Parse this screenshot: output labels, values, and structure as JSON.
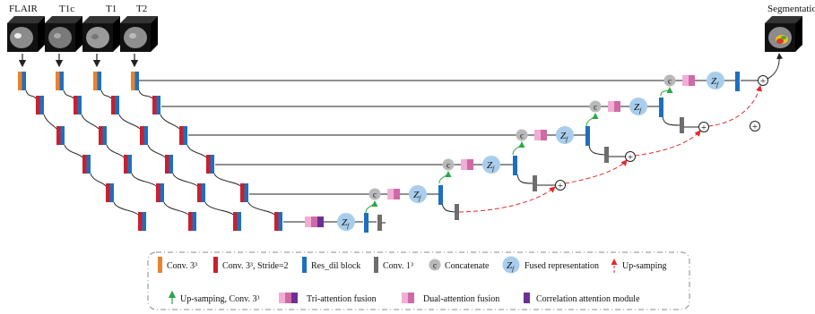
{
  "modalities": [
    "FLAIR",
    "T1c",
    "T1",
    "T2"
  ],
  "output_label": "Segmentation",
  "node_labels": {
    "concatenate": "c",
    "fused": "Z",
    "fused_sub": "f",
    "add": "+"
  },
  "legend": {
    "row1": [
      {
        "key": "conv",
        "label": "Conv. 3³"
      },
      {
        "key": "conv_stride",
        "label": "Conv. 3³, Stride=2"
      },
      {
        "key": "res_dil",
        "label": "Res_dil block"
      },
      {
        "key": "conv1",
        "label": "Conv. 1³"
      },
      {
        "key": "concat",
        "label": "Concatenate"
      },
      {
        "key": "fused",
        "label": "Fused representation"
      },
      {
        "key": "upsample",
        "label": "Up-samping"
      }
    ],
    "row2": [
      {
        "key": "upconv",
        "label": "Up-samping, Conv. 3³"
      },
      {
        "key": "tri",
        "label": "Tri-attention fusion"
      },
      {
        "key": "dual",
        "label": "Dual-attention fusion"
      },
      {
        "key": "corr",
        "label": "Correlation attention module"
      }
    ]
  },
  "colors": {
    "conv": "#e9822d",
    "conv_stride": "#c8202f",
    "res_dil": "#1f6fbf",
    "conv1": "#6e6e6e",
    "concat": "#b9b9b9",
    "fused": "#a9cdec",
    "green_arrow": "#2aa845",
    "red_dash": "#e02a2a",
    "pink_light": "#f1aed4",
    "pink_mid": "#cf6aa6",
    "pink_dark": "#b447a3",
    "corr": "#6b3092"
  }
}
